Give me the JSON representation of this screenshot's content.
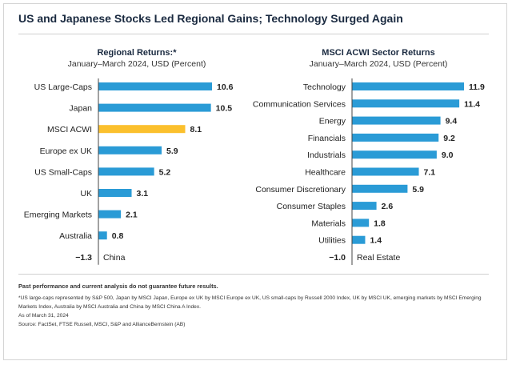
{
  "title": "US and Japanese Stocks Led Regional Gains; Technology Surged Again",
  "chart_data": [
    {
      "type": "bar",
      "orientation": "horizontal",
      "title": "Regional Returns:*",
      "subtitle": "January–March 2024, USD (Percent)",
      "categories": [
        "US Large-Caps",
        "Japan",
        "MSCI ACWI",
        "Europe ex UK",
        "US Small-Caps",
        "UK",
        "Emerging Markets",
        "Australia",
        "China"
      ],
      "values": [
        10.6,
        10.5,
        8.1,
        5.9,
        5.2,
        3.1,
        2.1,
        0.8,
        -1.3
      ],
      "value_labels": [
        "10.6",
        "10.5",
        "8.1",
        "5.9",
        "5.2",
        "3.1",
        "2.1",
        "0.8",
        "−1.3"
      ],
      "highlight_category": "MSCI ACWI",
      "xlabel": "",
      "ylabel": "Percent"
    },
    {
      "type": "bar",
      "orientation": "horizontal",
      "title": "MSCI ACWI Sector Returns",
      "subtitle": "January–March 2024, USD (Percent)",
      "categories": [
        "Technology",
        "Communication Services",
        "Energy",
        "Financials",
        "Industrials",
        "Healthcare",
        "Consumer Discretionary",
        "Consumer Staples",
        "Materials",
        "Utilities",
        "Real Estate"
      ],
      "values": [
        11.9,
        11.4,
        9.4,
        9.2,
        9.0,
        7.1,
        5.9,
        2.6,
        1.8,
        1.4,
        -1.0
      ],
      "value_labels": [
        "11.9",
        "11.4",
        "9.4",
        "9.2",
        "9.0",
        "7.1",
        "5.9",
        "2.6",
        "1.8",
        "1.4",
        "−1.0"
      ],
      "xlabel": "",
      "ylabel": "Percent"
    }
  ],
  "colors": {
    "bar": "#2a9bd6",
    "highlight": "#fbc02d",
    "title": "#1a2a40",
    "text": "#222222"
  },
  "footer": {
    "disclaimer": "Past performance and current analysis do not guarantee future results.",
    "note_1": "*US large-caps represented by S&P 500, Japan by MSCI Japan, Europe ex UK  by MSCI Europe ex UK, US small-caps by Russell 2000 Index, UK by MSCI UK, emerging markets by MSCI Emerging",
    "note_2": "Markets Index, Australia by MSCI Australia and China by MSCI China A Index.",
    "as_of": "As of March 31, 2024",
    "source": "Source: FactSet, FTSE Russell, MSCI, S&P and AllianceBernstein (AB)"
  }
}
